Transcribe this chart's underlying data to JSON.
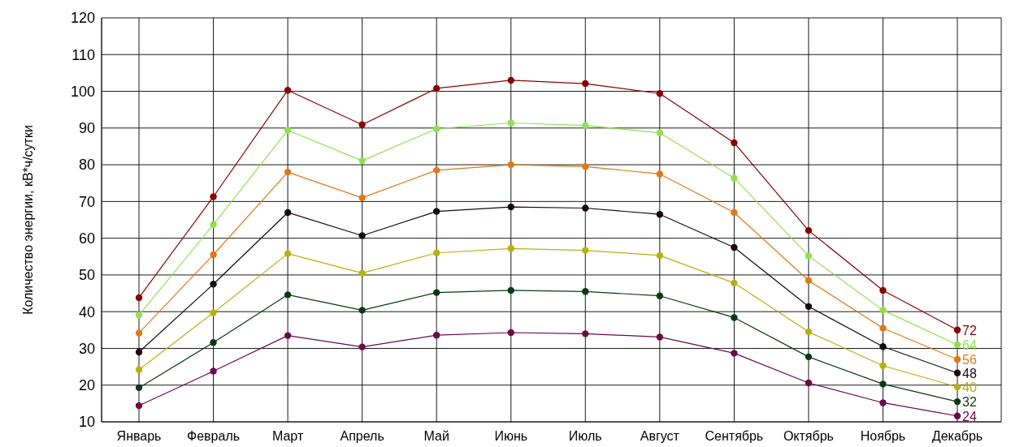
{
  "chart_data": {
    "type": "line",
    "ylabel": "Количество энергии, кВ*ч/сутки",
    "categories": [
      "Январь",
      "Февраль",
      "Март",
      "Апрель",
      "Май",
      "Июнь",
      "Июль",
      "Август",
      "Сентябрь",
      "Октябрь",
      "Ноябрь",
      "Декабрь"
    ],
    "ylim": [
      10,
      120
    ],
    "yticks": [
      10,
      20,
      30,
      40,
      50,
      60,
      70,
      80,
      90,
      100,
      110,
      120
    ],
    "grid": true,
    "legend": false,
    "marker": "circle",
    "line_style": "solid",
    "series": [
      {
        "name": "72",
        "color": "#8b0000",
        "values": [
          43.8,
          71.3,
          100.3,
          90.9,
          100.8,
          103,
          102.1,
          99.4,
          86,
          62.1,
          45.8,
          35
        ]
      },
      {
        "name": "64",
        "color": "#90e050",
        "values": [
          39.1,
          63.7,
          89.4,
          81.1,
          89.8,
          91.4,
          90.7,
          88.7,
          76.4,
          55.2,
          40.4,
          31
        ]
      },
      {
        "name": "56",
        "color": "#e07818",
        "values": [
          34.2,
          55.5,
          78,
          71,
          78.5,
          80,
          79.5,
          77.5,
          67,
          48.5,
          35.5,
          27
        ]
      },
      {
        "name": "48",
        "color": "#180810",
        "values": [
          29,
          47.5,
          67,
          60.7,
          67.3,
          68.5,
          68.2,
          66.5,
          57.5,
          41.4,
          30.5,
          23.3
        ]
      },
      {
        "name": "40",
        "color": "#b8b010",
        "values": [
          24.2,
          39.7,
          55.8,
          50.5,
          56,
          57.2,
          56.7,
          55.3,
          47.8,
          34.5,
          25.3,
          19.5
        ]
      },
      {
        "name": "32",
        "color": "#0a3a14",
        "values": [
          19.3,
          31.6,
          44.6,
          40.4,
          45.2,
          45.8,
          45.5,
          44.3,
          38.4,
          27.7,
          20.3,
          15.5
        ]
      },
      {
        "name": "24",
        "color": "#6a0a4a",
        "values": [
          14.4,
          23.8,
          33.5,
          30.4,
          33.6,
          34.3,
          34,
          33.1,
          28.7,
          20.6,
          15.2,
          11.6
        ]
      }
    ]
  }
}
